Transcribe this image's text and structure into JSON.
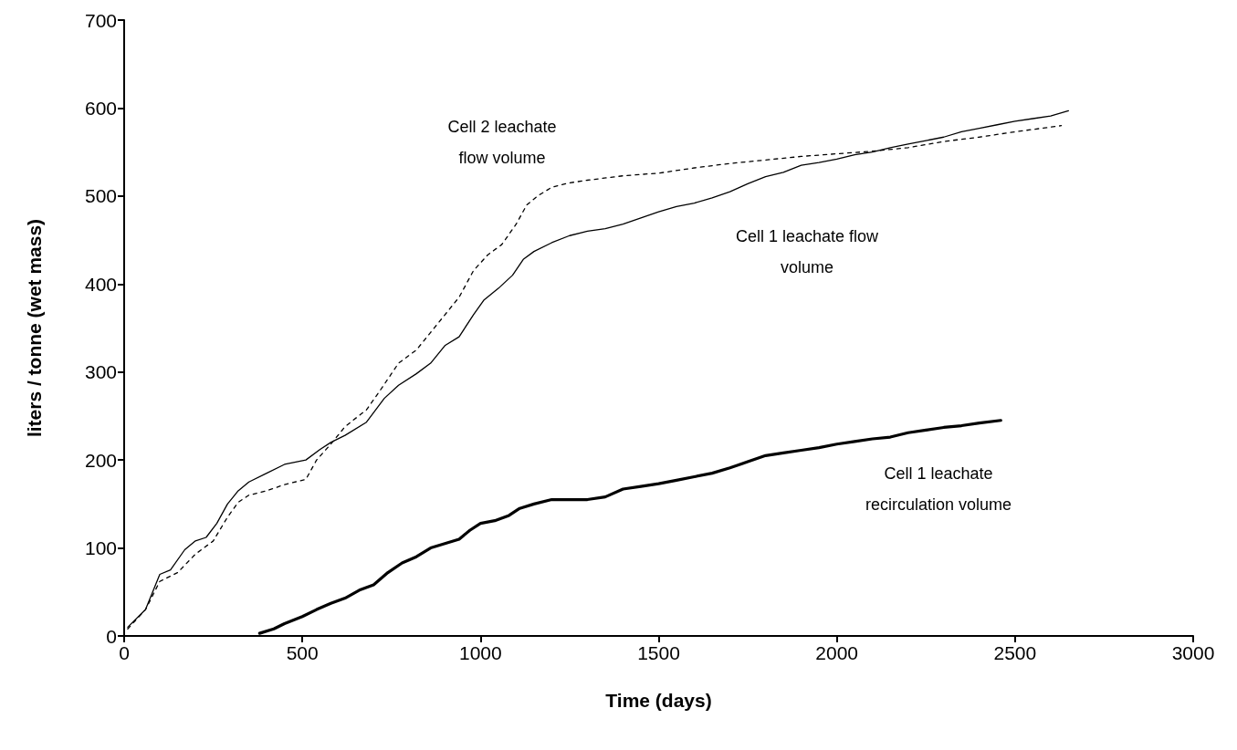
{
  "chart_data": {
    "type": "line",
    "xlabel": "Time (days)",
    "ylabel": "liters / tonne (wet mass)",
    "xlim": [
      0,
      3000
    ],
    "xticks": [
      0,
      500,
      1000,
      1500,
      2000,
      2500,
      3000
    ],
    "ylim": [
      0,
      700
    ],
    "yticks": [
      0,
      100,
      200,
      300,
      400,
      500,
      600,
      700
    ],
    "grid": false,
    "marker": "none",
    "series": [
      {
        "color": "#000000",
        "line_style": "solid",
        "x": [
          10,
          60,
          100,
          130,
          170,
          200,
          230,
          260,
          290,
          320,
          350,
          400,
          450,
          510,
          550,
          580,
          620,
          680,
          730,
          770,
          820,
          860,
          900,
          940,
          980,
          1010,
          1050,
          1090,
          1120,
          1150,
          1200,
          1250,
          1300,
          1350,
          1400,
          1450,
          1500,
          1550,
          1600,
          1650,
          1700,
          1750,
          1800,
          1850,
          1900,
          1950,
          2000,
          2050,
          2100,
          2150,
          2200,
          2250,
          2300,
          2350,
          2400,
          2450,
          2500,
          2550,
          2600,
          2650
        ],
        "values": [
          10,
          30,
          70,
          75,
          98,
          108,
          112,
          128,
          150,
          165,
          175,
          185,
          195,
          200,
          212,
          220,
          228,
          243,
          270,
          285,
          298,
          310,
          330,
          340,
          365,
          382,
          395,
          410,
          428,
          437,
          447,
          455,
          460,
          463,
          468,
          475,
          482,
          488,
          492,
          498,
          505,
          514,
          522,
          527,
          535,
          538,
          542,
          547,
          550,
          555,
          559,
          563,
          567,
          573,
          577,
          581,
          585,
          588,
          591,
          597
        ]
      },
      {
        "color": "#000000",
        "line_style": "dashed",
        "x": [
          10,
          60,
          100,
          150,
          200,
          250,
          290,
          320,
          350,
          400,
          450,
          510,
          540,
          580,
          620,
          680,
          720,
          770,
          820,
          860,
          900,
          940,
          980,
          1020,
          1060,
          1100,
          1130,
          1160,
          1200,
          1250,
          1300,
          1400,
          1500,
          1600,
          1700,
          1800,
          1900,
          2000,
          2100,
          2200,
          2300,
          2400,
          2500,
          2630
        ],
        "values": [
          8,
          30,
          62,
          72,
          93,
          108,
          135,
          152,
          160,
          165,
          172,
          178,
          200,
          218,
          238,
          257,
          280,
          310,
          325,
          345,
          365,
          385,
          415,
          433,
          445,
          468,
          490,
          500,
          510,
          515,
          518,
          523,
          526,
          532,
          537,
          541,
          545,
          548,
          551,
          555,
          562,
          567,
          573,
          580
        ]
      },
      {
        "color": "#000000",
        "line_style": "solid",
        "x": [
          380,
          420,
          450,
          500,
          540,
          580,
          620,
          660,
          700,
          740,
          780,
          820,
          860,
          900,
          940,
          970,
          1000,
          1040,
          1080,
          1110,
          1150,
          1200,
          1300,
          1350,
          1400,
          1450,
          1500,
          1550,
          1600,
          1650,
          1700,
          1750,
          1800,
          1850,
          1900,
          1950,
          2000,
          2050,
          2100,
          2150,
          2200,
          2250,
          2300,
          2350,
          2400,
          2460
        ],
        "values": [
          3,
          8,
          14,
          22,
          30,
          37,
          43,
          52,
          58,
          72,
          83,
          90,
          100,
          105,
          110,
          120,
          128,
          131,
          137,
          145,
          150,
          155,
          155,
          158,
          167,
          170,
          173,
          177,
          181,
          185,
          191,
          198,
          205,
          208,
          211,
          214,
          218,
          221,
          224,
          226,
          231,
          234,
          237,
          239,
          242,
          245
        ]
      }
    ],
    "annotations": [
      "Cell 2 leachate\nflow volume",
      "Cell 1 leachate flow\nvolume",
      "Cell 1 leachate\nrecirculation volume"
    ]
  }
}
